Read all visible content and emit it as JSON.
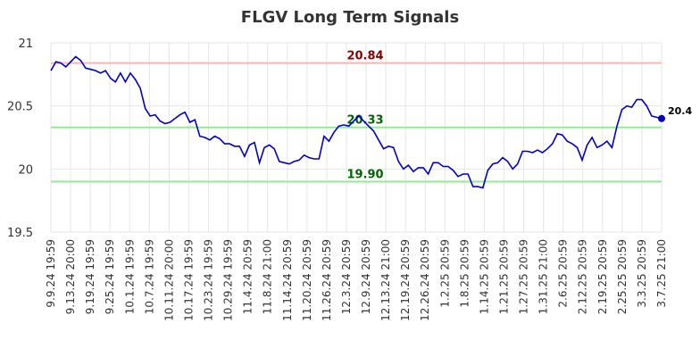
{
  "chart_data": {
    "type": "line",
    "title": "FLGV Long Term Signals",
    "ylim": [
      19.5,
      21
    ],
    "yticks": [
      "19.5",
      "20",
      "20.5",
      "21"
    ],
    "xticks": [
      "9.9.24 19:59",
      "9.13.24 20:00",
      "9.19.24 19:59",
      "9.25.24 19:59",
      "10.1.24 19:59",
      "10.7.24 19:59",
      "10.11.24 20:00",
      "10.17.24 19:59",
      "10.23.24 19:59",
      "10.29.24 19:59",
      "11.4.24 20:59",
      "11.8.24 21:00",
      "11.14.24 20:59",
      "11.20.24 20:59",
      "11.26.24 20:59",
      "12.3.24 20:59",
      "12.9.24 20:59",
      "12.13.24 21:00",
      "12.19.24 20:59",
      "12.26.24 20:59",
      "1.2.25 20:59",
      "1.8.25 20:59",
      "1.14.25 20:59",
      "1.21.25 20:59",
      "1.27.25 20:59",
      "1.31.25 21:00",
      "2.6.25 20:59",
      "2.12.25 20:59",
      "2.19.25 20:59",
      "2.25.25 20:59",
      "3.3.25 20:59",
      "3.7.25 21:00"
    ],
    "grid": true,
    "series": [
      {
        "color": "#0000cc",
        "values": [
          20.78,
          20.85,
          20.84,
          20.81,
          20.85,
          20.89,
          20.86,
          20.8,
          20.79,
          20.78,
          20.76,
          20.78,
          20.72,
          20.69,
          20.76,
          20.69,
          20.76,
          20.71,
          20.64,
          20.48,
          20.42,
          20.43,
          20.38,
          20.36,
          20.37,
          20.4,
          20.43,
          20.45,
          20.37,
          20.39,
          20.26,
          20.25,
          20.23,
          20.26,
          20.24,
          20.2,
          20.2,
          20.18,
          20.18,
          20.1,
          20.19,
          20.21,
          20.05,
          20.17,
          20.19,
          20.16,
          20.06,
          20.05,
          20.04,
          20.06,
          20.07,
          20.11,
          20.09,
          20.08,
          20.08,
          20.26,
          20.22,
          20.29,
          20.34,
          20.35,
          20.34,
          20.38,
          20.42,
          20.38,
          20.34,
          20.3,
          20.23,
          20.16,
          20.18,
          20.17,
          20.06,
          20.0,
          20.03,
          19.98,
          20.01,
          20.01,
          19.96,
          20.05,
          20.05,
          20.02,
          20.02,
          19.99,
          19.94,
          19.96,
          19.96,
          19.86,
          19.86,
          19.85,
          19.99,
          20.04,
          20.05,
          20.09,
          20.06,
          20.0,
          20.04,
          20.14,
          20.14,
          20.13,
          20.15,
          20.13,
          20.16,
          20.2,
          20.28,
          20.27,
          20.22,
          20.2,
          20.17,
          20.07,
          20.19,
          20.25,
          20.17,
          20.19,
          20.22,
          20.17,
          20.34,
          20.47,
          20.5,
          20.49,
          20.55,
          20.55,
          20.5,
          20.42,
          20.41,
          20.4
        ]
      }
    ],
    "levels": [
      {
        "value": 20.84,
        "label": "20.84",
        "line_color": "#ffb3b3",
        "text_color": "#8b0000"
      },
      {
        "value": 20.33,
        "label": "20.33",
        "line_color": "#90ee90",
        "text_color": "#006400"
      },
      {
        "value": 19.9,
        "label": "19.90",
        "line_color": "#90ee90",
        "text_color": "#006400"
      }
    ],
    "last_value_label": "20.4"
  }
}
